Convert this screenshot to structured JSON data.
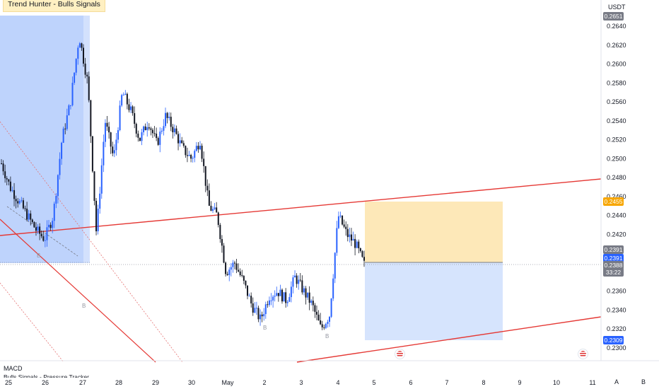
{
  "indicator": {
    "name": "Trend Hunter - Bulls Signals"
  },
  "price_axis": {
    "unit": "USDT",
    "ticks": [
      "0.2640",
      "0.2620",
      "0.2600",
      "0.2580",
      "0.2560",
      "0.2540",
      "0.2520",
      "0.2500",
      "0.2480",
      "0.2460",
      "0.2440",
      "0.2420",
      "0.2360",
      "0.2340",
      "0.2320",
      "0.2300"
    ],
    "badges": [
      {
        "value": "0.2651",
        "color": "#787b86"
      },
      {
        "value": "0.2455",
        "color": "#f7a600"
      },
      {
        "value": "0.2391",
        "color": "#787b86"
      },
      {
        "value": "0.2391",
        "color": "#2962ff"
      },
      {
        "value": "0.2388",
        "color": "#787b86"
      },
      {
        "value": "33:22",
        "color": "#787b86"
      },
      {
        "value": "0.2309",
        "color": "#2962ff"
      }
    ]
  },
  "time_axis": {
    "labels": [
      "25",
      "26",
      "27",
      "28",
      "29",
      "30",
      "May",
      "2",
      "3",
      "4",
      "5",
      "6",
      "7",
      "8",
      "9",
      "10",
      "11"
    ]
  },
  "signals": [
    "B",
    "B",
    "B",
    "B"
  ],
  "pane": {
    "title": "MACD",
    "subtitle": "Bulls Signals - Pressure Tracker"
  },
  "scale_buttons": [
    "A",
    "B"
  ],
  "colors": {
    "up": "#2962ff",
    "down": "#131722",
    "trendline": "#e53935",
    "long_profit": "#fde8b8",
    "long_stop": "#d6e4fd",
    "highlight": "#a8c4fb"
  },
  "chart_data": {
    "type": "candlestick",
    "symbol_unit": "USDT",
    "date_labels": [
      "25",
      "26",
      "27",
      "28",
      "29",
      "30",
      "May",
      "2",
      "3",
      "4",
      "5",
      "6",
      "7",
      "8",
      "9",
      "10",
      "11"
    ],
    "y_range": [
      0.229,
      0.2665
    ],
    "last_price": 0.2388,
    "position": {
      "type": "long",
      "entry": 0.2391,
      "target": 0.2455,
      "stop": 0.2309
    },
    "price_path": [
      0.2495,
      0.247,
      0.2455,
      0.244,
      0.2425,
      0.2415,
      0.244,
      0.252,
      0.256,
      0.263,
      0.258,
      0.242,
      0.254,
      0.25,
      0.257,
      0.255,
      0.252,
      0.254,
      0.2515,
      0.2545,
      0.253,
      0.251,
      0.25,
      0.252,
      0.245,
      0.244,
      0.238,
      0.239,
      0.237,
      0.2345,
      0.233,
      0.2355,
      0.236,
      0.235,
      0.2375,
      0.236,
      0.2345,
      0.232,
      0.2335,
      0.244,
      0.242,
      0.241,
      0.2388
    ]
  }
}
